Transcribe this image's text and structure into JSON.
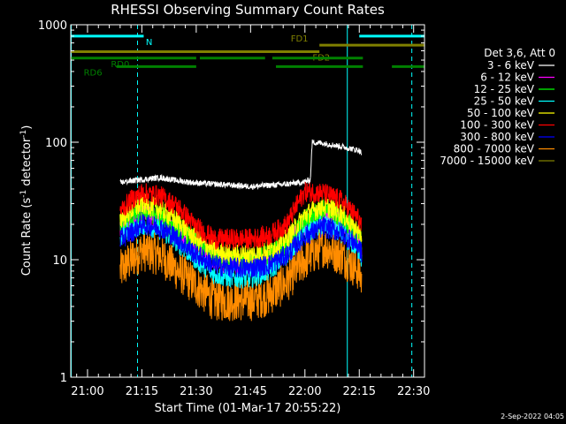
{
  "footer": {
    "date_stamp": "2-Sep-2022 04:05"
  },
  "chart_data": {
    "type": "line",
    "title": "RHESSI Observing Summary Count Rates",
    "xlabel": "Start Time (01-Mar-17 20:55:22)",
    "ylabel_main": "Count Rate (s",
    "ylabel_sup1": "-1",
    "ylabel_mid": " detector",
    "ylabel_sup2": "-1",
    "ylabel_end": ")",
    "y_scale": "log",
    "ylim": [
      1,
      1000
    ],
    "xlim_minutes": [
      55.37,
      153.0
    ],
    "x_ticks": [
      {
        "label": "21:00",
        "minute": 60
      },
      {
        "label": "21:15",
        "minute": 75
      },
      {
        "label": "21:30",
        "minute": 90
      },
      {
        "label": "21:45",
        "minute": 105
      },
      {
        "label": "22:00",
        "minute": 120
      },
      {
        "label": "22:15",
        "minute": 135
      },
      {
        "label": "22:30",
        "minute": 150
      }
    ],
    "y_ticks": [
      {
        "label": "1",
        "value": 1
      },
      {
        "label": "10",
        "value": 10
      },
      {
        "label": "100",
        "value": 100
      },
      {
        "label": "1000",
        "value": 1000
      }
    ],
    "legend_title": "Det 3,6, Att 0",
    "legend_position": "right",
    "series": [
      {
        "name": "3 - 6 keV",
        "color": "#ffffff",
        "x": [
          69,
          70,
          75,
          80,
          85,
          90,
          95,
          100,
          105,
          110,
          115,
          120,
          121.5,
          122,
          125,
          130,
          135,
          135.7
        ],
        "y": [
          45,
          46,
          48,
          50,
          47,
          45,
          44,
          43,
          42,
          43,
          44,
          46,
          48,
          100,
          98,
          92,
          85,
          80
        ]
      },
      {
        "name": "6 - 12 keV",
        "color": "#ff00ff",
        "x": [
          69,
          72,
          75,
          80,
          85,
          90,
          95,
          100,
          105,
          110,
          115,
          120,
          125,
          130,
          135,
          135.7
        ],
        "y": [
          18,
          21,
          24,
          22,
          18,
          13,
          10,
          9,
          9,
          10,
          13,
          20,
          25,
          21,
          15,
          13
        ]
      },
      {
        "name": "12 - 25 keV",
        "color": "#00ff00",
        "x": [
          69,
          72,
          75,
          80,
          85,
          90,
          95,
          100,
          105,
          110,
          115,
          120,
          125,
          130,
          135,
          135.7
        ],
        "y": [
          20,
          23,
          26,
          24,
          19,
          14,
          11,
          10,
          10,
          11,
          14,
          22,
          27,
          23,
          16,
          14
        ]
      },
      {
        "name": "25 - 50 keV",
        "color": "#00ffff",
        "x": [
          69,
          72,
          75,
          80,
          85,
          90,
          95,
          100,
          105,
          110,
          115,
          120,
          125,
          130,
          135,
          135.7
        ],
        "y": [
          16,
          18,
          20,
          18,
          14,
          10,
          7.5,
          7,
          7,
          8,
          11,
          17,
          20,
          17,
          12,
          10
        ]
      },
      {
        "name": "50 - 100 keV",
        "color": "#ffff00",
        "x": [
          69,
          72,
          75,
          80,
          85,
          90,
          95,
          100,
          105,
          110,
          115,
          120,
          125,
          130,
          135,
          135.7
        ],
        "y": [
          22,
          26,
          30,
          27,
          21,
          15,
          12,
          11,
          11,
          12,
          15,
          24,
          29,
          25,
          17,
          15
        ]
      },
      {
        "name": "100 - 300 keV",
        "color": "#ff0000",
        "x": [
          69,
          72,
          75,
          80,
          85,
          90,
          95,
          100,
          105,
          110,
          115,
          118,
          120,
          125,
          130,
          135,
          135.7
        ],
        "y": [
          26,
          32,
          37,
          35,
          28,
          19,
          15,
          15,
          15,
          16,
          20,
          30,
          38,
          37,
          32,
          22,
          18
        ]
      },
      {
        "name": "300 - 800 keV",
        "color": "#0000ff",
        "x": [
          69,
          72,
          75,
          80,
          85,
          90,
          95,
          100,
          105,
          110,
          115,
          120,
          125,
          130,
          135,
          135.7
        ],
        "y": [
          15,
          17,
          20,
          19,
          15,
          11,
          9,
          8.5,
          8.5,
          9,
          11,
          16,
          19,
          17,
          13,
          11
        ]
      },
      {
        "name": "800 - 7000 keV",
        "color": "#ff8c00",
        "x": [
          69,
          72,
          75,
          80,
          85,
          90,
          95,
          100,
          105,
          110,
          115,
          120,
          125,
          130,
          135,
          135.7
        ],
        "y": [
          8,
          10,
          12,
          11,
          8,
          6,
          4.5,
          4.5,
          4.5,
          5,
          6.5,
          10,
          13,
          11,
          8,
          6.5
        ]
      },
      {
        "name": "7000 - 15000 keV",
        "color": "#808000",
        "x": [],
        "y": []
      }
    ],
    "flags": [
      {
        "label": "N",
        "color": "#00ffff",
        "segments": [
          [
            55.5,
            75.5
          ],
          [
            135,
            153
          ]
        ],
        "level_rate": 800,
        "label_minute": 77
      },
      {
        "label": "FD1",
        "color": "#808000",
        "segments": [
          [
            124,
            153
          ]
        ],
        "level_rate": 670,
        "label_minute": 118.5
      },
      {
        "label": "FD2",
        "color": "#808000",
        "segments": [
          [
            55.5,
            124
          ]
        ],
        "level_rate": 590,
        "label_minute": 124.5
      },
      {
        "label": "RD0",
        "color": "#008000",
        "segments": [
          [
            55.5,
            90
          ],
          [
            91,
            109
          ],
          [
            111,
            136
          ]
        ],
        "level_rate": 520,
        "label_minute": 69
      },
      {
        "label": "RD6",
        "color": "#008000",
        "segments": [
          [
            68,
            90
          ],
          [
            112,
            136
          ],
          [
            144,
            153
          ]
        ],
        "level_rate": 440,
        "label_minute": 61.5
      }
    ],
    "vlines_solid": [
      55.5,
      131.7
    ],
    "vlines_dashed": [
      73.8,
      149.5
    ],
    "vline_color": "#00ffff"
  }
}
